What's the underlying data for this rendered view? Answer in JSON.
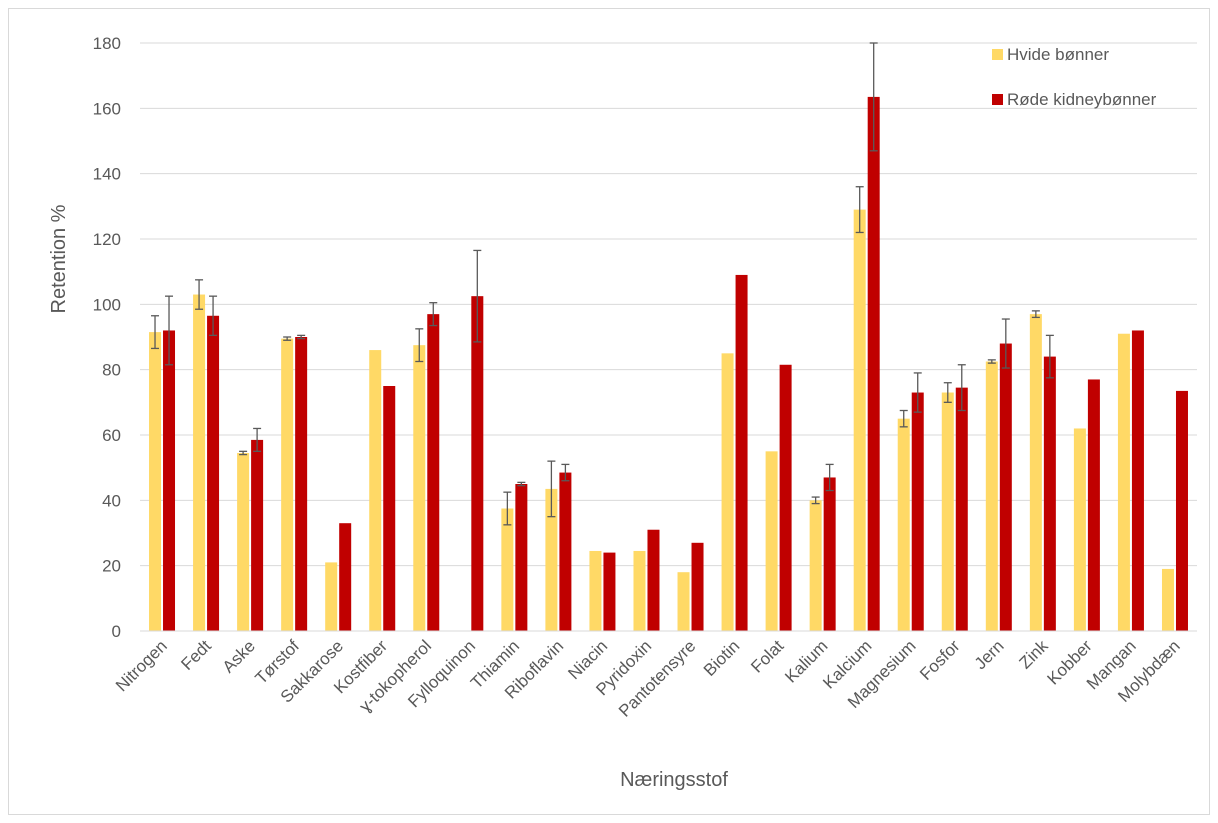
{
  "chart_data": {
    "type": "bar",
    "title": "",
    "xlabel": "Næringsstof",
    "ylabel": "Retention %",
    "ylim": [
      0,
      180
    ],
    "yticks": [
      0,
      20,
      40,
      60,
      80,
      100,
      120,
      140,
      160,
      180
    ],
    "grid": true,
    "legend_position": "top-right",
    "categories": [
      "Nitrogen",
      "Fedt",
      "Aske",
      "Tørstof",
      "Sakkarose",
      "Kostfiber",
      "ɣ-tokopherol",
      "Fylloquinon",
      "Thiamin",
      "Riboflavin",
      "Niacin",
      "Pyridoxin",
      "Pantotensyre",
      "Biotin",
      "Folat",
      "Kalium",
      "Kalcium",
      "Magnesium",
      "Fosfor",
      "Jern",
      "Zink",
      "Kobber",
      "Mangan",
      "Molybdæn"
    ],
    "series": [
      {
        "name": "Hvide bønner",
        "color": "#FFD966",
        "values": [
          91.5,
          103,
          54.5,
          89.5,
          21,
          86,
          87.5,
          null,
          37.5,
          43.5,
          24.5,
          24.5,
          18,
          85,
          55,
          40,
          129,
          65,
          73,
          82.5,
          97,
          62,
          91,
          19
        ],
        "errors": [
          5,
          4.5,
          0.5,
          0.5,
          null,
          null,
          5,
          null,
          5,
          8.5,
          null,
          null,
          null,
          null,
          null,
          1,
          7,
          2.5,
          3,
          0.5,
          1,
          null,
          null,
          null
        ]
      },
      {
        "name": "Røde kidneybønner",
        "color": "#C00000",
        "values": [
          92,
          96.5,
          58.5,
          90,
          33,
          75,
          97,
          102.5,
          45,
          48.5,
          24,
          31,
          27,
          109,
          81.5,
          47,
          163.5,
          73,
          74.5,
          88,
          84,
          77,
          92,
          73.5
        ],
        "errors": [
          10.5,
          6,
          3.5,
          0.5,
          null,
          null,
          3.5,
          14,
          0.5,
          2.5,
          null,
          null,
          null,
          null,
          null,
          4,
          16.5,
          6,
          7,
          7.5,
          6.5,
          null,
          null,
          null
        ]
      }
    ]
  }
}
